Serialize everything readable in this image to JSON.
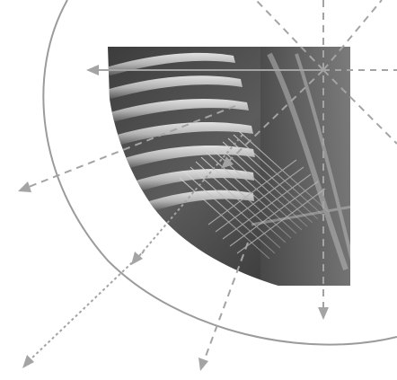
{
  "figure": {
    "kind": "decorative-illustration",
    "photo_subject": "close-up-threaded-fibers",
    "colors": {
      "background": "#ffffff",
      "arc": "#9b9b9b",
      "arrow_line": "#a4a4a4",
      "photo_dark": "#2f2f2f",
      "photo_mid": "#6b6b6b",
      "photo_light": "#d6d6d6"
    },
    "arrow_styles": [
      "solid",
      "dashed",
      "dotted"
    ]
  }
}
